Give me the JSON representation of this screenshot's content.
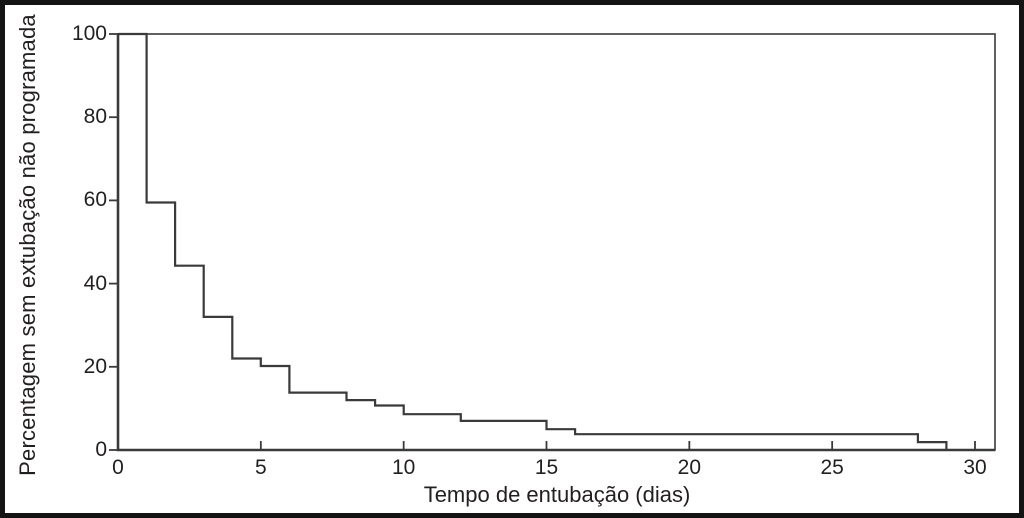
{
  "figure": {
    "background": "#ffffff",
    "frame_color": "#141414",
    "axis_color": "#3a3a3a",
    "text_color": "#231f20"
  },
  "chart_data": {
    "type": "line",
    "subtype": "kaplan-meier-step",
    "title": "",
    "xlabel": "Tempo de entubação (dias)",
    "ylabel": "Percentagem sem extubação não programada",
    "xlim": [
      0,
      30.7
    ],
    "ylim": [
      0,
      100
    ],
    "x_ticks": [
      0,
      5,
      10,
      15,
      20,
      25,
      30
    ],
    "y_ticks": [
      0,
      20,
      40,
      60,
      80,
      100
    ],
    "grid": false,
    "legend": false,
    "line_color": "#3a3a3a",
    "step_semantics": "Curve starts at 100%; each entry gives the day at which the curve drops to 'percent' and holds that value until the next listed day.",
    "steps": [
      {
        "day": 0,
        "percent": 100
      },
      {
        "day": 1,
        "percent": 59.5
      },
      {
        "day": 2,
        "percent": 44.3
      },
      {
        "day": 3,
        "percent": 32
      },
      {
        "day": 4,
        "percent": 22
      },
      {
        "day": 5,
        "percent": 20.2
      },
      {
        "day": 6,
        "percent": 13.8
      },
      {
        "day": 8,
        "percent": 12
      },
      {
        "day": 9,
        "percent": 10.7
      },
      {
        "day": 10,
        "percent": 8.6
      },
      {
        "day": 12,
        "percent": 7
      },
      {
        "day": 15,
        "percent": 5
      },
      {
        "day": 16,
        "percent": 3.8
      },
      {
        "day": 28,
        "percent": 1.9
      },
      {
        "day": 29,
        "percent": 0
      }
    ]
  }
}
